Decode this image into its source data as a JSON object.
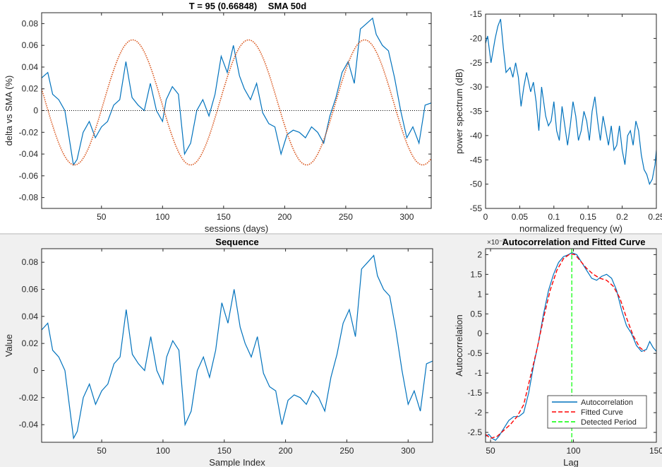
{
  "chart_data": [
    {
      "id": "plot_top_left",
      "type": "line",
      "title_left": "T = 95 (0.66848)",
      "title_right": "SMA 50d",
      "xlabel": "sessions (days)",
      "ylabel": "delta vs SMA (%)",
      "xlim": [
        1,
        320
      ],
      "ylim": [
        -0.09,
        0.09
      ],
      "xticks": [
        50,
        100,
        150,
        200,
        250,
        300
      ],
      "yticks": [
        -0.08,
        -0.06,
        -0.04,
        -0.02,
        0,
        0.02,
        0.04,
        0.06,
        0.08
      ],
      "ytick_labels": [
        "-0.08",
        "-0.06",
        "-0.04",
        "-0.02",
        "0",
        "0.02",
        "0.04",
        "0.06",
        "0.08"
      ],
      "series": [
        {
          "kind": "data",
          "color": "#0072BD",
          "x": [
            1,
            6,
            10,
            15,
            20,
            27,
            30,
            35,
            40,
            45,
            50,
            55,
            60,
            65,
            70,
            75,
            80,
            85,
            90,
            95,
            100,
            103,
            108,
            113,
            118,
            123,
            128,
            133,
            138,
            143,
            148,
            153,
            158,
            163,
            167,
            172,
            177,
            182,
            187,
            192,
            197,
            202,
            207,
            212,
            217,
            222,
            227,
            232,
            237,
            242,
            247,
            252,
            257,
            262,
            267,
            272,
            275,
            280,
            285,
            290,
            295,
            300,
            305,
            310,
            315,
            320
          ],
          "y": [
            0.03,
            0.035,
            0.015,
            0.01,
            0,
            -0.05,
            -0.045,
            -0.02,
            -0.01,
            -0.025,
            -0.015,
            -0.01,
            0.005,
            0.01,
            0.045,
            0.012,
            0.005,
            0.0,
            0.025,
            0.0,
            -0.01,
            0.01,
            0.022,
            0.015,
            -0.04,
            -0.03,
            0.0,
            0.01,
            -0.005,
            0.015,
            0.05,
            0.035,
            0.06,
            0.032,
            0.02,
            0.01,
            0.025,
            -0.002,
            -0.012,
            -0.015,
            -0.04,
            -0.022,
            -0.018,
            -0.02,
            -0.025,
            -0.015,
            -0.02,
            -0.03,
            -0.005,
            0.012,
            0.035,
            0.045,
            0.025,
            0.075,
            0.08,
            0.085,
            0.07,
            0.06,
            0.055,
            0.03,
            0.0,
            -0.025,
            -0.015,
            -0.03,
            0.005,
            0.007
          ]
        },
        {
          "kind": "sine",
          "color": "#D95319",
          "amplitude": 0.0575,
          "offset": 0.0075,
          "period": 95,
          "min_at": 28,
          "x_from": 1,
          "x_to": 320
        },
        {
          "kind": "zero",
          "color": "#000000"
        }
      ]
    },
    {
      "id": "plot_top_right",
      "type": "line",
      "xlabel": "normalized frequency (w)",
      "ylabel": "power spectrum (dB)",
      "xlim": [
        0,
        0.25
      ],
      "ylim": [
        -55,
        -15
      ],
      "xticks": [
        0,
        0.05,
        0.1,
        0.15,
        0.2,
        0.25
      ],
      "xtick_labels": [
        "0",
        "0.05",
        "0.1",
        "0.15",
        "0.2",
        "0.25"
      ],
      "yticks": [
        -55,
        -50,
        -45,
        -40,
        -35,
        -30,
        -25,
        -20,
        -15
      ],
      "series": [
        {
          "color": "#0072BD",
          "x": [
            0,
            0.003,
            0.008,
            0.014,
            0.018,
            0.022,
            0.026,
            0.03,
            0.036,
            0.04,
            0.044,
            0.048,
            0.052,
            0.056,
            0.06,
            0.066,
            0.07,
            0.074,
            0.078,
            0.082,
            0.088,
            0.092,
            0.096,
            0.1,
            0.104,
            0.108,
            0.112,
            0.116,
            0.12,
            0.124,
            0.128,
            0.132,
            0.136,
            0.14,
            0.144,
            0.148,
            0.152,
            0.156,
            0.16,
            0.164,
            0.168,
            0.172,
            0.176,
            0.18,
            0.184,
            0.188,
            0.192,
            0.196,
            0.2,
            0.204,
            0.208,
            0.212,
            0.216,
            0.22,
            0.224,
            0.228,
            0.232,
            0.236,
            0.24,
            0.244,
            0.248,
            0.25
          ],
          "y": [
            -21,
            -19.5,
            -25,
            -20,
            -17.5,
            -16,
            -22,
            -27,
            -26,
            -28,
            -25,
            -28,
            -34,
            -30,
            -27,
            -31,
            -29,
            -33,
            -39,
            -30,
            -36,
            -38,
            -37,
            -33,
            -39,
            -41,
            -34,
            -38,
            -42,
            -38,
            -33,
            -36,
            -41,
            -39,
            -35,
            -37,
            -41,
            -35,
            -32,
            -37,
            -41,
            -36,
            -39,
            -42,
            -38,
            -43,
            -42,
            -38,
            -43,
            -46,
            -40,
            -39,
            -42,
            -37,
            -39,
            -44,
            -47,
            -48,
            -50,
            -49,
            -46,
            -43
          ]
        }
      ]
    },
    {
      "id": "plot_bottom_left",
      "type": "line",
      "title": "Sequence",
      "xlabel": "Sample Index",
      "ylabel": "Value",
      "xlim": [
        1,
        320
      ],
      "ylim": [
        -0.053,
        0.09
      ],
      "xticks": [
        50,
        100,
        150,
        200,
        250,
        300
      ],
      "yticks": [
        -0.04,
        -0.02,
        0,
        0.02,
        0.04,
        0.06,
        0.08
      ],
      "ytick_labels": [
        "-0.04",
        "-0.02",
        "0",
        "0.02",
        "0.04",
        "0.06",
        "0.08"
      ],
      "series": [
        {
          "color": "#0072BD",
          "x": [
            1,
            6,
            10,
            15,
            20,
            27,
            30,
            35,
            40,
            45,
            50,
            55,
            60,
            65,
            70,
            75,
            80,
            85,
            90,
            95,
            100,
            103,
            108,
            113,
            118,
            123,
            128,
            133,
            138,
            143,
            148,
            153,
            158,
            163,
            167,
            172,
            177,
            182,
            187,
            192,
            197,
            202,
            207,
            212,
            217,
            222,
            227,
            232,
            237,
            242,
            247,
            252,
            257,
            262,
            267,
            272,
            275,
            280,
            285,
            290,
            295,
            300,
            305,
            310,
            315,
            320
          ],
          "y": [
            0.03,
            0.035,
            0.015,
            0.01,
            0,
            -0.05,
            -0.045,
            -0.02,
            -0.01,
            -0.025,
            -0.015,
            -0.01,
            0.005,
            0.01,
            0.045,
            0.012,
            0.005,
            0.0,
            0.025,
            0.0,
            -0.01,
            0.01,
            0.022,
            0.015,
            -0.04,
            -0.03,
            0.0,
            0.01,
            -0.005,
            0.015,
            0.05,
            0.035,
            0.06,
            0.032,
            0.02,
            0.01,
            0.025,
            -0.002,
            -0.012,
            -0.015,
            -0.04,
            -0.022,
            -0.018,
            -0.02,
            -0.025,
            -0.015,
            -0.02,
            -0.03,
            -0.005,
            0.012,
            0.035,
            0.045,
            0.025,
            0.075,
            0.08,
            0.085,
            0.07,
            0.06,
            0.055,
            0.03,
            0.0,
            -0.025,
            -0.015,
            -0.03,
            0.005,
            0.007
          ]
        }
      ]
    },
    {
      "id": "plot_bottom_right",
      "type": "line",
      "title": "Autocorrelation and Fitted Curve",
      "exponent_label": "×10⁻³",
      "xlabel": "Lag",
      "ylabel": "Autocorrelation",
      "xlim": [
        47,
        150
      ],
      "ylim": [
        -2.75,
        2.15
      ],
      "xticks": [
        50,
        100,
        150
      ],
      "yticks": [
        -2.5,
        -2,
        -1.5,
        -1,
        -0.5,
        0,
        0.5,
        1,
        1.5,
        2
      ],
      "ytick_labels": [
        "-2.5",
        "-2",
        "-1.5",
        "-1",
        "-0.5",
        "0",
        "0.5",
        "1",
        "1.5",
        "2"
      ],
      "detected_period": 99,
      "legend": [
        "Autocorrelation",
        "Fitted Curve",
        "Detected Period"
      ],
      "legend_position": "bottom-right",
      "series": [
        {
          "name": "Autocorrelation",
          "color": "#0072BD",
          "x": [
            47,
            49,
            51,
            53,
            55,
            58,
            61,
            64,
            67,
            70,
            73,
            76,
            79,
            82,
            85,
            88,
            91,
            94,
            97,
            99,
            102,
            105,
            108,
            111,
            114,
            117,
            120,
            123,
            126,
            129,
            132,
            135,
            138,
            141,
            144,
            146,
            148,
            150
          ],
          "y": [
            -2.6,
            -2.55,
            -2.65,
            -2.7,
            -2.6,
            -2.4,
            -2.2,
            -2.1,
            -2.1,
            -2.0,
            -1.5,
            -0.8,
            -0.2,
            0.5,
            1.1,
            1.5,
            1.8,
            1.95,
            2.0,
            2.05,
            2.0,
            1.8,
            1.6,
            1.4,
            1.35,
            1.45,
            1.5,
            1.4,
            1.1,
            0.6,
            0.2,
            0.0,
            -0.3,
            -0.45,
            -0.4,
            -0.2,
            -0.35,
            -0.45
          ]
        },
        {
          "name": "Fitted Curve",
          "color": "#FF0000",
          "x": [
            47,
            50,
            54,
            58,
            62,
            66,
            70,
            74,
            78,
            82,
            86,
            90,
            94,
            98,
            101,
            104,
            108,
            112,
            116,
            120,
            124,
            128,
            132,
            136,
            140,
            143
          ],
          "y": [
            -2.55,
            -2.65,
            -2.6,
            -2.45,
            -2.3,
            -2.1,
            -1.8,
            -1.1,
            -0.4,
            0.4,
            1.1,
            1.6,
            1.9,
            2.02,
            2.0,
            1.85,
            1.65,
            1.5,
            1.4,
            1.35,
            1.2,
            0.9,
            0.4,
            -0.05,
            -0.35,
            -0.45
          ]
        },
        {
          "name": "Detected Period",
          "color": "#00FF00"
        }
      ]
    }
  ]
}
